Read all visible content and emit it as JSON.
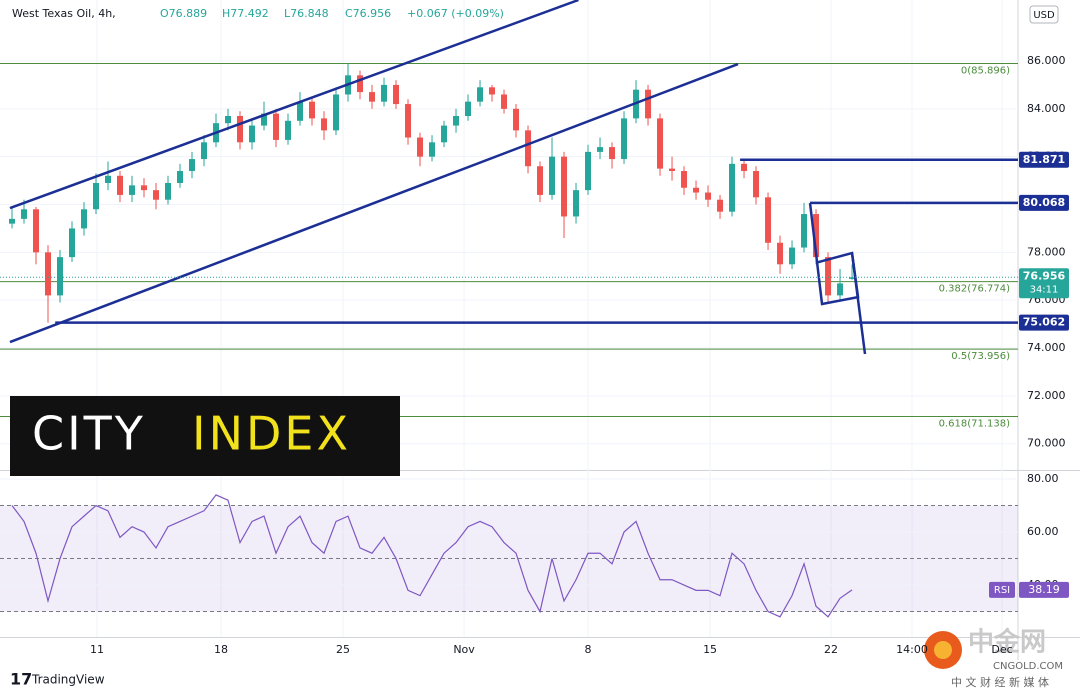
{
  "chart_data": {
    "type": "candlestick",
    "title": "West Texas Oil, 4h,",
    "header": [
      "O76.889",
      "H77.492",
      "L76.848",
      "C76.956",
      "+0.067 (+0.09%)"
    ],
    "currency": "USD",
    "countdown": "34:11",
    "up_color": "#26a69a",
    "down_color": "#ef5350",
    "x": [
      1,
      2,
      3,
      4,
      5,
      6,
      7,
      8,
      9,
      10,
      11,
      12,
      13,
      14,
      15,
      16,
      17,
      18,
      19,
      20,
      21,
      22,
      23,
      24,
      25,
      26,
      27,
      28,
      29,
      30,
      31,
      32,
      33,
      34,
      35,
      36,
      37,
      38,
      39,
      40,
      41,
      42,
      43,
      44,
      45,
      46,
      47,
      48,
      49,
      50,
      51,
      52,
      53,
      54,
      55,
      56,
      57,
      58,
      59,
      60,
      61,
      62,
      63,
      64,
      65,
      66,
      67,
      68,
      69,
      70,
      71
    ],
    "open": [
      79.2,
      79.4,
      79.8,
      78.0,
      76.2,
      77.8,
      79.0,
      79.8,
      80.9,
      81.2,
      80.4,
      80.8,
      80.6,
      80.2,
      80.9,
      81.4,
      81.9,
      82.6,
      83.4,
      83.7,
      82.6,
      83.3,
      83.8,
      82.7,
      83.5,
      84.3,
      83.6,
      83.1,
      84.6,
      85.4,
      84.7,
      84.3,
      85.0,
      84.2,
      82.8,
      82.0,
      82.6,
      83.3,
      83.7,
      84.3,
      84.9,
      84.6,
      84.0,
      83.1,
      81.6,
      80.4,
      82.0,
      79.5,
      80.6,
      82.2,
      82.4,
      81.9,
      83.6,
      84.8,
      83.6,
      81.5,
      81.4,
      80.7,
      80.5,
      80.2,
      79.7,
      81.7,
      81.4,
      80.3,
      78.4,
      77.5,
      78.2,
      79.6,
      77.8,
      76.2,
      76.889
    ],
    "high": [
      79.9,
      80.2,
      79.9,
      78.3,
      78.1,
      79.3,
      80.1,
      81.3,
      81.8,
      81.4,
      81.2,
      81.1,
      80.9,
      81.2,
      81.7,
      82.2,
      82.9,
      83.8,
      84.0,
      83.9,
      83.6,
      84.3,
      84.0,
      83.8,
      84.7,
      84.5,
      83.9,
      84.9,
      85.9,
      85.6,
      85.0,
      85.3,
      85.2,
      84.4,
      83.0,
      82.9,
      83.5,
      84.0,
      84.6,
      85.2,
      85.0,
      84.8,
      84.2,
      83.3,
      81.8,
      82.8,
      82.2,
      80.9,
      82.5,
      82.8,
      82.6,
      83.9,
      85.2,
      85.0,
      83.8,
      82.0,
      81.6,
      81.0,
      80.8,
      80.4,
      82.0,
      81.9,
      81.6,
      80.5,
      78.7,
      78.5,
      80.07,
      79.8,
      78.0,
      77.3,
      77.492
    ],
    "low": [
      79.0,
      79.2,
      77.5,
      75.06,
      75.9,
      77.6,
      78.7,
      79.6,
      80.6,
      80.1,
      80.1,
      80.3,
      79.8,
      80.0,
      80.7,
      81.1,
      81.6,
      82.4,
      83.1,
      82.3,
      82.3,
      83.1,
      82.4,
      82.5,
      83.3,
      83.3,
      82.7,
      82.9,
      84.3,
      84.4,
      84.0,
      84.1,
      84.0,
      82.5,
      81.6,
      81.8,
      82.4,
      83.0,
      83.5,
      84.1,
      84.3,
      83.8,
      82.8,
      81.3,
      80.1,
      80.2,
      78.6,
      79.2,
      80.4,
      81.9,
      81.5,
      81.7,
      83.4,
      83.3,
      81.2,
      81.0,
      80.4,
      80.2,
      79.9,
      79.4,
      79.5,
      81.1,
      80.0,
      78.1,
      77.1,
      77.3,
      78.0,
      77.5,
      75.9,
      76.0,
      76.848
    ],
    "close": [
      79.4,
      79.8,
      78.0,
      76.2,
      77.8,
      79.0,
      79.8,
      80.9,
      81.2,
      80.4,
      80.8,
      80.6,
      80.2,
      80.9,
      81.4,
      81.9,
      82.6,
      83.4,
      83.7,
      82.6,
      83.3,
      83.8,
      82.7,
      83.5,
      84.3,
      83.6,
      83.1,
      84.6,
      85.4,
      84.7,
      84.3,
      85.0,
      84.2,
      82.8,
      82.0,
      82.6,
      83.3,
      83.7,
      84.3,
      84.9,
      84.6,
      84.0,
      83.1,
      81.6,
      80.4,
      82.0,
      79.5,
      80.6,
      82.2,
      82.4,
      81.9,
      83.6,
      84.8,
      83.6,
      81.5,
      81.4,
      80.7,
      80.5,
      80.2,
      79.7,
      81.7,
      81.4,
      80.3,
      78.4,
      77.5,
      78.2,
      79.6,
      77.8,
      76.2,
      76.7,
      76.956
    ],
    "xlim": [
      0,
      84.83
    ],
    "xticks": [
      {
        "value": 8.08,
        "label": "11"
      },
      {
        "value": 18.42,
        "label": "18"
      },
      {
        "value": 28.58,
        "label": "25"
      },
      {
        "value": 38.67,
        "label": "Nov"
      },
      {
        "value": 49,
        "label": "8"
      },
      {
        "value": 59.17,
        "label": "15"
      },
      {
        "value": 69.25,
        "label": "22"
      },
      {
        "value": 76,
        "label": "14:00"
      },
      {
        "value": 83.5,
        "label": "Dec"
      }
    ],
    "ylim": [
      68.9,
      88.55
    ],
    "yticks": [
      {
        "value": 86,
        "label": "86.000"
      },
      {
        "value": 84,
        "label": "84.000"
      },
      {
        "value": 82,
        "label": "82.000"
      },
      {
        "value": 80,
        "label": "80.000"
      },
      {
        "value": 78,
        "label": "78.000"
      },
      {
        "value": 76,
        "label": "76.000"
      },
      {
        "value": 74,
        "label": "74.000"
      },
      {
        "value": 72,
        "label": "72.000"
      },
      {
        "value": 70,
        "label": "70.000"
      }
    ],
    "grid": true,
    "fib_levels": [
      {
        "value": 85.896,
        "label": "0(85.896)"
      },
      {
        "value": 76.774,
        "label": "0.382(76.774)"
      },
      {
        "value": 73.956,
        "label": "0.5(73.956)"
      },
      {
        "value": 71.138,
        "label": "0.618(71.138)"
      }
    ],
    "fib_color": "#4c8c3c",
    "levels": [
      {
        "value": 81.871,
        "from": 61.67
      },
      {
        "value": 80.068,
        "from": 67.5
      },
      {
        "value": 75.062,
        "from": 4.6
      }
    ],
    "drawing_color": "#1c2f94",
    "trendlines": [
      {
        "x": [
          0.83,
          48.2
        ],
        "y": [
          79.85,
          88.55
        ]
      },
      {
        "x": [
          0.83,
          61.5
        ],
        "y": [
          74.25,
          85.87
        ]
      },
      {
        "x": [
          67.5,
          68.5,
          71.5,
          71,
          68.17
        ],
        "y": [
          80.06,
          75.84,
          76.13,
          77.97,
          77.59
        ]
      },
      {
        "x": [
          71,
          72.08
        ],
        "y": [
          77.97,
          73.75
        ]
      }
    ],
    "rsi": {
      "name": "RSI",
      "color": "#7e57c2",
      "values": [
        70,
        64,
        52,
        34,
        50,
        62,
        66,
        70,
        68,
        58,
        62,
        60,
        54,
        62,
        64,
        66,
        68,
        74,
        72,
        56,
        64,
        66,
        52,
        62,
        66,
        56,
        52,
        64,
        66,
        54,
        52,
        58,
        50,
        38,
        36,
        44,
        52,
        56,
        62,
        64,
        62,
        56,
        52,
        38,
        30,
        50,
        34,
        42,
        52,
        52,
        48,
        60,
        64,
        52,
        42,
        42,
        40,
        38,
        38,
        36,
        52,
        48,
        38,
        30,
        28,
        36,
        48,
        32,
        28,
        35,
        38.19
      ],
      "ylim": [
        20.4,
        83.4
      ],
      "yticks": [
        {
          "value": 80,
          "label": "80.00"
        },
        {
          "value": 60,
          "label": "60.00"
        },
        {
          "value": 40,
          "label": "40.00"
        }
      ],
      "bands": [
        70,
        50,
        30
      ]
    }
  },
  "branding": {
    "city": "CITY",
    "index": "INDEX",
    "tradingview": "TradingView",
    "cngold": "中金网",
    "cngold_site": "CNGOLD.COM",
    "cngold_slogan": "中 文 财 经 新 媒 体"
  }
}
